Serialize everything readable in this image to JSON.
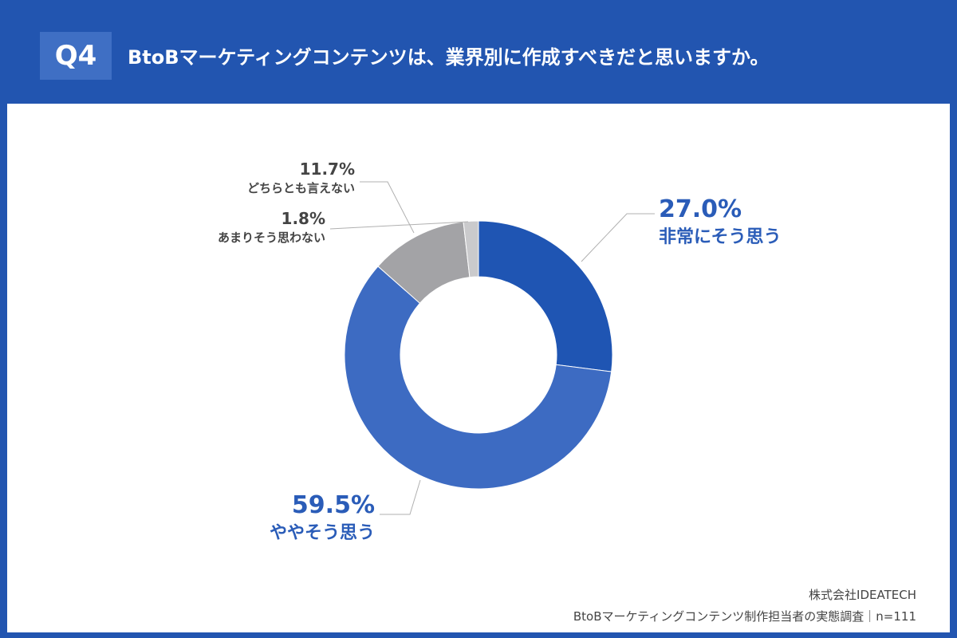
{
  "header": {
    "badge": "Q4",
    "question": "BtoBマーケティングコンテンツは、業界別に作成すべきだと思いますか。"
  },
  "colors": {
    "background": "#2255b0",
    "badge": "#3f6fc4",
    "label_blue": "#2a5cb8",
    "label_gray": "#444444"
  },
  "chart_data": {
    "type": "pie",
    "donut": true,
    "categories": [
      "非常にそう思う",
      "ややそう思う",
      "どちらとも言えない",
      "あまりそう思わない"
    ],
    "values": [
      27.0,
      59.5,
      11.7,
      1.8
    ],
    "value_labels": [
      "27.0%",
      "59.5%",
      "11.7%",
      "1.8%"
    ],
    "colors": [
      "#1f55b3",
      "#3d6bc2",
      "#a3a3a6",
      "#cacacc"
    ],
    "start_angle": "12 o'clock",
    "direction": "clockwise"
  },
  "footer": {
    "company": "株式会社IDEATECH",
    "survey": "BtoBマーケティングコンテンツ制作担当者の実態調査｜n=111"
  }
}
